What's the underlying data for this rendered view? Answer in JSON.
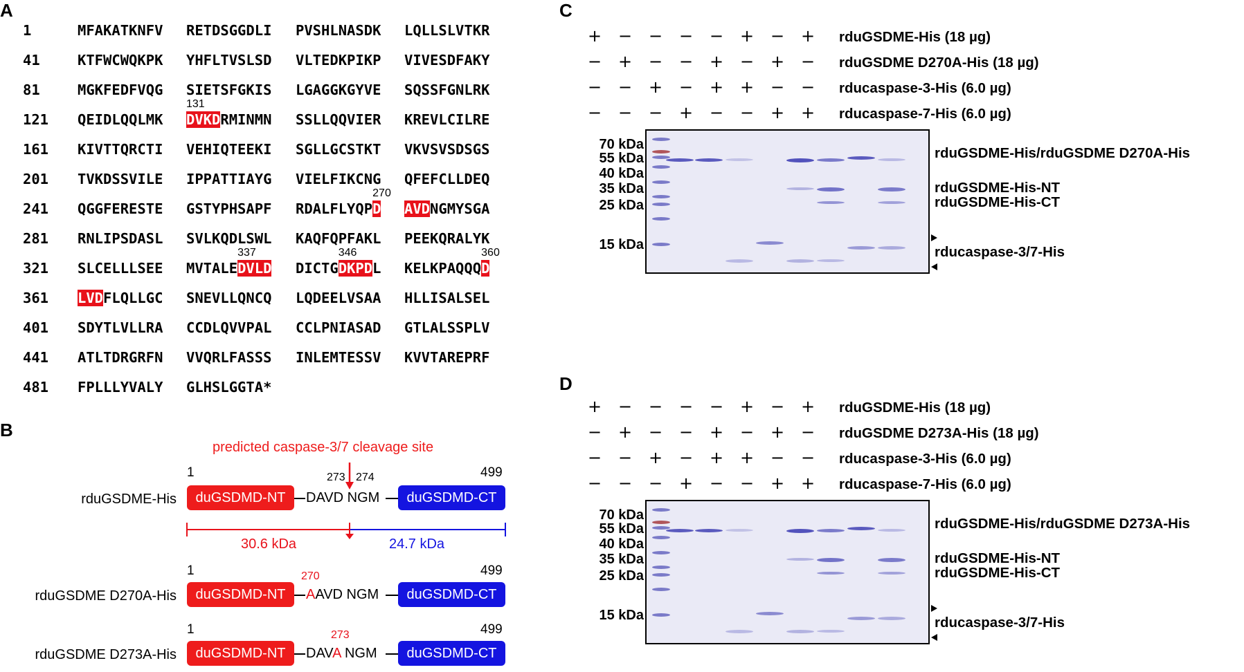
{
  "panelA": {
    "letter": "A",
    "rows": [
      {
        "n": "1",
        "b": [
          "MFAKATKNFV",
          "RETDSGGDLI",
          "PVSHLNASDK",
          "LQLLSLVTKR"
        ]
      },
      {
        "n": "41",
        "b": [
          "KTFWCWQKPK",
          "YHFLTVSLSD",
          "VLTEDKPIKP",
          "VIVESDFAKY"
        ]
      },
      {
        "n": "81",
        "b": [
          "MGKFEDFVQG",
          "SIETSFGKIS",
          "LGAGGKGYVE",
          "SQSSFGNLRK"
        ]
      },
      {
        "n": "121",
        "b": [
          "QEIDLQQLMK",
          "DVKDRMINMN",
          "SSLLQQVIER",
          "KREVLCILRE"
        ]
      },
      {
        "n": "161",
        "b": [
          "KIVTTQRCTI",
          "VEHIQTEEKI",
          "SGLLGCSTKT",
          "VKVSVSDSGS"
        ]
      },
      {
        "n": "201",
        "b": [
          "TVKDSSVILE",
          "IPPATTIAYG",
          "VIELFIKCNG",
          "QFEFCLLDEQ"
        ]
      },
      {
        "n": "241",
        "b": [
          "QGGFERESTE",
          "GSTYPHSAPF",
          "RDALFLYQPD",
          "AVDNGMYSGA"
        ]
      },
      {
        "n": "281",
        "b": [
          "RNLIPSDASL",
          "SVLKQDLSWL",
          "KAQFQPFAKL",
          "PEEKQRALYK"
        ]
      },
      {
        "n": "321",
        "b": [
          "SLCELLLSEE",
          "MVTALEDVLD",
          "DICTGDKPDL",
          "KELKPAQQQD"
        ]
      },
      {
        "n": "361",
        "b": [
          "LVDFLQLLGC",
          "SNEVLLQNCQ",
          "LQDEELVSAA",
          "HLLISALSEL"
        ]
      },
      {
        "n": "401",
        "b": [
          "SDYTLVLLRA",
          "CCDLQVVPAL",
          "CCLPNIASAD",
          "GTLALSSPLV"
        ]
      },
      {
        "n": "441",
        "b": [
          "ATLTDRGRFN",
          "VVQRLFASSS",
          "INLEMTESSV",
          "KVVTAREPRF"
        ]
      },
      {
        "n": "481",
        "b": [
          "FPLLLYVALY",
          "GLHSLGGTA*"
        ]
      }
    ],
    "site_labels": [
      "131",
      "270",
      "337",
      "346",
      "360"
    ]
  },
  "panelB": {
    "letter": "B",
    "title": "predicted caspase-3/7 cleavage site",
    "nt_label": "duGSDMD-NT",
    "ct_label": "duGSDMD-CT",
    "start": "1",
    "end": "499",
    "cut_left": "273",
    "cut_right": "274",
    "kda_nt": "30.6 kDa",
    "kda_ct": "24.7 kDa",
    "constructs": [
      {
        "name": "rduGSDME-His",
        "linker": "DAVD NGM"
      },
      {
        "name": "rduGSDME D270A-His",
        "mut_pos": "270",
        "mut": "A",
        "linker_rest": "AVD NGM"
      },
      {
        "name": "rduGSDME D273A-His",
        "mut_pos": "273",
        "linker_pre": "DAV",
        "mut": "A",
        "linker_rest": " NGM"
      }
    ]
  },
  "panelC": {
    "letter": "C",
    "conditions": [
      {
        "label": "rduGSDME-His (18 µg)",
        "signs": [
          "+",
          "−",
          "−",
          "−",
          "−",
          "+",
          "−",
          "+"
        ]
      },
      {
        "label": "rduGSDME D270A-His (18 µg)",
        "signs": [
          "−",
          "+",
          "−",
          "−",
          "+",
          "−",
          "+",
          "−"
        ]
      },
      {
        "label": "rducaspase-3-His (6.0 µg)",
        "signs": [
          "−",
          "−",
          "+",
          "−",
          "+",
          "+",
          "−",
          "−"
        ]
      },
      {
        "label": "rducaspase-7-His (6.0 µg)",
        "signs": [
          "−",
          "−",
          "−",
          "+",
          "−",
          "−",
          "+",
          "+"
        ]
      }
    ],
    "markers": [
      "70 kDa",
      "55 kDa",
      "40 kDa",
      "35 kDa",
      "25 kDa",
      "15 kDa"
    ],
    "band_labels": [
      "rduGSDME-His/rduGSDME D270A-His",
      "rduGSDME-His-NT",
      "rduGSDME-His-CT",
      "rducaspase-3/7-His"
    ]
  },
  "panelD": {
    "letter": "D",
    "conditions": [
      {
        "label": "rduGSDME-His (18 µg)",
        "signs": [
          "+",
          "−",
          "−",
          "−",
          "−",
          "+",
          "−",
          "+"
        ]
      },
      {
        "label": "rduGSDME D273A-His (18 µg)",
        "signs": [
          "−",
          "+",
          "−",
          "−",
          "+",
          "−",
          "+",
          "−"
        ]
      },
      {
        "label": "rducaspase-3-His (6.0 µg)",
        "signs": [
          "−",
          "−",
          "+",
          "−",
          "+",
          "+",
          "−",
          "−"
        ]
      },
      {
        "label": "rducaspase-7-His (6.0 µg)",
        "signs": [
          "−",
          "−",
          "−",
          "+",
          "−",
          "−",
          "+",
          "+"
        ]
      }
    ],
    "markers": [
      "70 kDa",
      "55 kDa",
      "40 kDa",
      "35 kDa",
      "25 kDa",
      "15 kDa"
    ],
    "band_labels": [
      "rduGSDME-His/rduGSDME D273A-His",
      "rduGSDME-His-NT",
      "rduGSDME-His-CT",
      "rducaspase-3/7-His"
    ]
  },
  "colors": {
    "highlight": "#e8121b",
    "nt_box": "#ee1c1c",
    "ct_box": "#1414e0",
    "band": "#4a4ab8",
    "gel_bg": "#eaeaf6"
  }
}
